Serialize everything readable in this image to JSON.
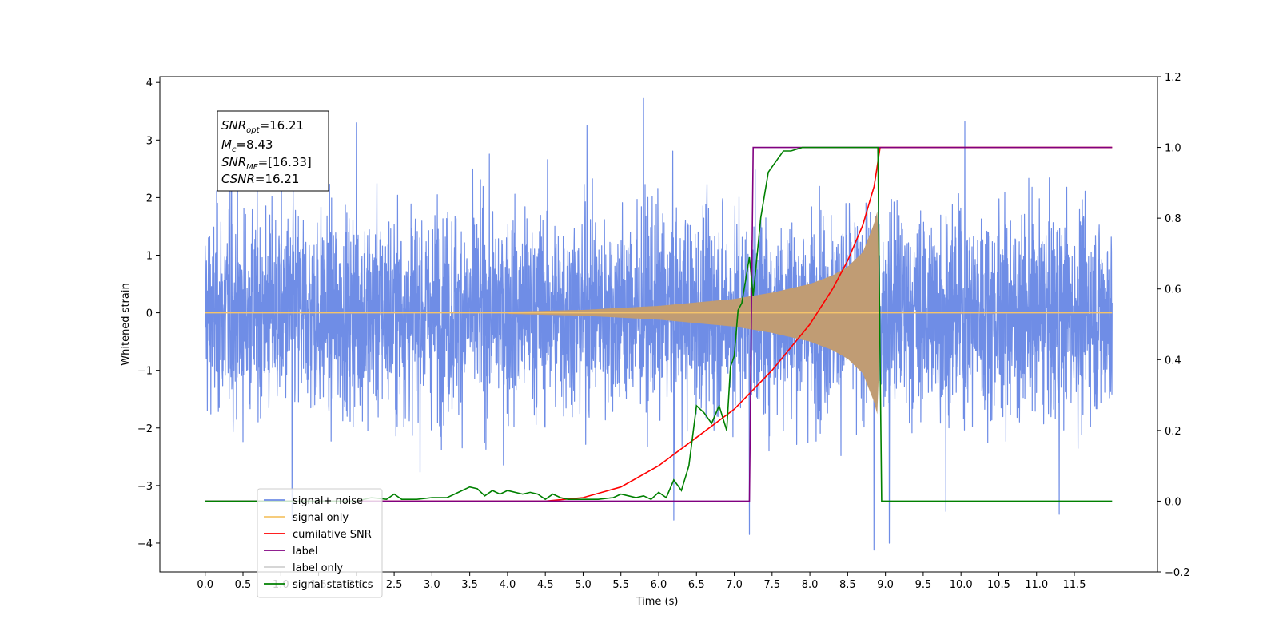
{
  "chart_data": {
    "type": "line",
    "xlabel": "Time (s)",
    "ylabel": "Whitened strain",
    "xlim": [
      -0.6,
      12.6
    ],
    "ylim": [
      -4.5,
      4.1
    ],
    "ylim_right": [
      -0.2,
      1.2
    ],
    "x_ticks": [
      0.0,
      0.5,
      1.0,
      1.5,
      2.0,
      2.5,
      3.0,
      3.5,
      4.0,
      4.5,
      5.0,
      5.5,
      6.0,
      6.5,
      7.0,
      7.5,
      8.0,
      8.5,
      9.0,
      9.5,
      10.0,
      10.5,
      11.0,
      11.5
    ],
    "x_tick_labels": [
      "0.0",
      "0.5",
      "1.0",
      "1.5",
      "2.0",
      "2.5",
      "3.0",
      "3.5",
      "4.0",
      "4.5",
      "5.0",
      "5.5",
      "6.0",
      "6.5",
      "7.0",
      "7.5",
      "8.0",
      "8.5",
      "9.0",
      "9.5",
      "10.0",
      "10.5",
      "11.0",
      "11.5"
    ],
    "y_ticks": [
      -4,
      -3,
      -2,
      -1,
      0,
      1,
      2,
      3,
      4
    ],
    "y_tick_labels": [
      "−4",
      "−3",
      "−2",
      "−1",
      "0",
      "1",
      "2",
      "3",
      "4"
    ],
    "y_right_ticks": [
      -0.2,
      0.0,
      0.2,
      0.4,
      0.6,
      0.8,
      1.0,
      1.2
    ],
    "y_right_tick_labels": [
      "−0.2",
      "0.0",
      "0.2",
      "0.4",
      "0.6",
      "0.8",
      "1.0",
      "1.2"
    ],
    "annotation_lines": [
      {
        "main": "SNR",
        "sub": "opt",
        "rest": "=16.21"
      },
      {
        "main": "M",
        "sub": "c",
        "rest": "=8.43"
      },
      {
        "main": "SNR",
        "sub": "MF",
        "rest": "=[16.33]"
      },
      {
        "main": "CSNR",
        "sub": "",
        "rest": "=16.21"
      }
    ],
    "legend": {
      "location": "lower-left",
      "entries": [
        {
          "label": "signal+ noise",
          "color": "#6f8de6"
        },
        {
          "label": "signal only",
          "color": "#f5c46a"
        },
        {
          "label": "cumilative SNR",
          "color": "#ff0000"
        },
        {
          "label": "label",
          "color": "#800080"
        },
        {
          "label": "label only",
          "color": "#d0d0d0"
        },
        {
          "label": "signal statistics",
          "color": "#008000"
        }
      ]
    },
    "series": [
      {
        "name": "signal+ noise",
        "axis": "left",
        "color": "#6f8de6",
        "description": "noisy whitened strain, roughly between -2.5 and 2.5 with spikes up to 3.7 and down to -4.1",
        "x_range": [
          0.0,
          12.0
        ],
        "spikes": [
          [
            5.8,
            3.72
          ],
          [
            8.85,
            -4.12
          ],
          [
            9.05,
            -4.0
          ],
          [
            1.15,
            -3.6
          ],
          [
            6.2,
            -3.6
          ],
          [
            7.2,
            -3.85
          ],
          [
            10.05,
            3.32
          ],
          [
            0.35,
            3.3
          ],
          [
            5.05,
            3.25
          ],
          [
            2.0,
            3.3
          ],
          [
            11.3,
            -3.5
          ],
          [
            9.8,
            -3.45
          ]
        ]
      },
      {
        "name": "signal only",
        "axis": "left",
        "color": "#f5c46a",
        "description": "chirp waveform, amplitude growing until merger near 8.9 s",
        "x_range": [
          0.0,
          12.0
        ],
        "envelope": {
          "x": [
            4.0,
            5.0,
            6.0,
            7.0,
            7.5,
            8.0,
            8.3,
            8.5,
            8.7,
            8.85,
            8.9,
            8.93
          ],
          "amp": [
            0.02,
            0.05,
            0.12,
            0.24,
            0.35,
            0.5,
            0.65,
            0.8,
            1.05,
            1.55,
            1.8,
            0.0
          ]
        }
      },
      {
        "name": "cumilative SNR",
        "axis": "right",
        "color": "#ff0000",
        "x": [
          0.0,
          4.5,
          5.0,
          5.5,
          6.0,
          6.5,
          7.0,
          7.5,
          8.0,
          8.3,
          8.5,
          8.7,
          8.85,
          8.93,
          9.0,
          12.0
        ],
        "y": [
          0.0,
          0.0,
          0.01,
          0.04,
          0.1,
          0.18,
          0.26,
          0.37,
          0.5,
          0.6,
          0.68,
          0.78,
          0.89,
          1.0,
          1.0,
          1.0
        ]
      },
      {
        "name": "label",
        "axis": "right",
        "color": "#800080",
        "x": [
          0.0,
          7.2,
          7.25,
          8.9,
          12.0
        ],
        "y": [
          0.0,
          0.0,
          1.0,
          1.0,
          1.0
        ]
      },
      {
        "name": "signal statistics",
        "axis": "right",
        "color": "#008000",
        "x": [
          0.0,
          2.0,
          2.2,
          2.4,
          2.5,
          2.6,
          2.8,
          3.0,
          3.2,
          3.3,
          3.4,
          3.5,
          3.6,
          3.7,
          3.8,
          3.9,
          4.0,
          4.2,
          4.3,
          4.4,
          4.5,
          4.6,
          4.7,
          4.8,
          5.0,
          5.2,
          5.4,
          5.5,
          5.6,
          5.7,
          5.8,
          5.9,
          6.0,
          6.1,
          6.2,
          6.3,
          6.4,
          6.5,
          6.6,
          6.7,
          6.8,
          6.9,
          6.95,
          7.0,
          7.05,
          7.1,
          7.2,
          7.25,
          7.35,
          7.45,
          7.55,
          7.65,
          7.75,
          7.9,
          8.1,
          8.5,
          8.9,
          8.95,
          9.0,
          12.0
        ],
        "y": [
          0.0,
          0.0,
          0.01,
          0.005,
          0.02,
          0.005,
          0.005,
          0.01,
          0.01,
          0.02,
          0.03,
          0.04,
          0.035,
          0.015,
          0.03,
          0.02,
          0.03,
          0.02,
          0.025,
          0.02,
          0.005,
          0.02,
          0.01,
          0.005,
          0.005,
          0.005,
          0.01,
          0.02,
          0.015,
          0.01,
          0.015,
          0.005,
          0.025,
          0.01,
          0.06,
          0.03,
          0.1,
          0.27,
          0.25,
          0.22,
          0.27,
          0.2,
          0.38,
          0.41,
          0.54,
          0.56,
          0.69,
          0.58,
          0.8,
          0.93,
          0.96,
          0.99,
          0.99,
          1.0,
          1.0,
          1.0,
          1.0,
          0.0,
          0.0,
          0.0
        ]
      }
    ]
  }
}
